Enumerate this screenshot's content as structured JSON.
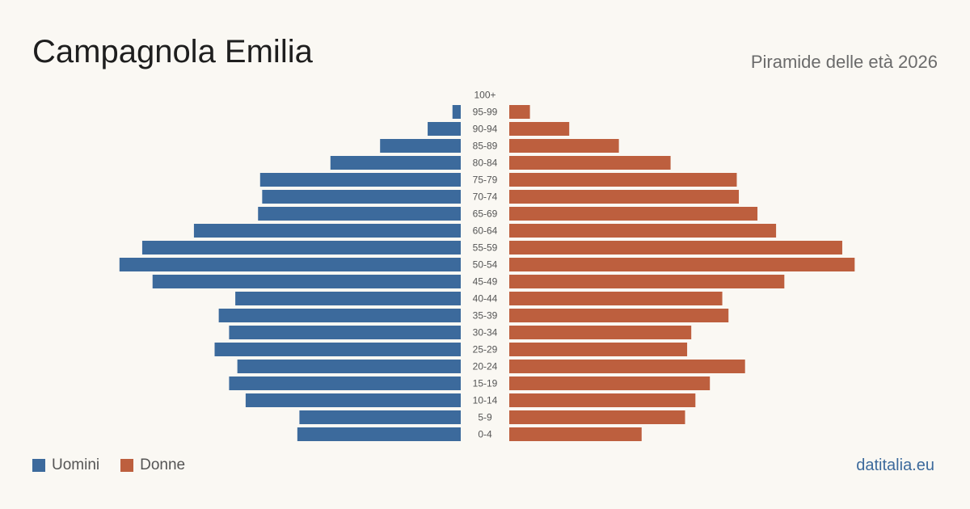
{
  "header": {
    "title": "Campagnola Emilia",
    "subtitle": "Piramide delle età 2026"
  },
  "colors": {
    "male": "#3c6a9c",
    "female": "#bd5f3e",
    "brand": "#3c6a9c"
  },
  "legend": {
    "male_label": "Uomini",
    "female_label": "Donne"
  },
  "brand": "datitalia.eu",
  "chart_data": {
    "type": "bar",
    "orientation": "horizontal",
    "layout": "population-pyramid",
    "categories": [
      "100+",
      "95-99",
      "90-94",
      "85-89",
      "80-84",
      "75-79",
      "70-74",
      "65-69",
      "60-64",
      "55-59",
      "50-54",
      "45-49",
      "40-44",
      "35-39",
      "30-34",
      "25-29",
      "20-24",
      "15-19",
      "10-14",
      "5-9",
      "0-4"
    ],
    "series": [
      {
        "name": "Uomini",
        "values": [
          0,
          4,
          16,
          39,
          63,
          97,
          96,
          98,
          129,
          154,
          165,
          149,
          109,
          117,
          112,
          119,
          108,
          112,
          104,
          78,
          79
        ]
      },
      {
        "name": "Donne",
        "values": [
          0,
          10,
          29,
          53,
          78,
          110,
          111,
          120,
          129,
          161,
          167,
          133,
          103,
          106,
          88,
          86,
          114,
          97,
          90,
          85,
          64
        ]
      }
    ],
    "xlim": [
      0,
      170
    ],
    "grid": false,
    "legend_position": "bottom-left"
  }
}
